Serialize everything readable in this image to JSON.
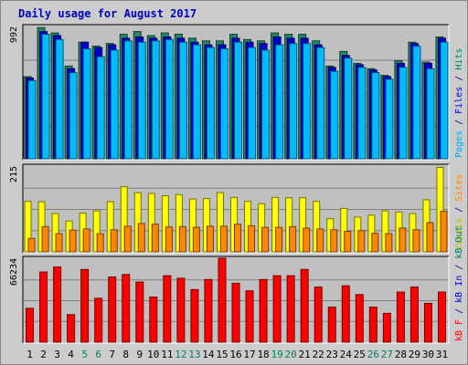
{
  "chart_data": {
    "type": "bar",
    "title": "Daily usage for August 2017",
    "categories": [
      "1",
      "2",
      "3",
      "4",
      "5",
      "6",
      "7",
      "8",
      "9",
      "10",
      "11",
      "12",
      "13",
      "14",
      "15",
      "16",
      "17",
      "18",
      "19",
      "20",
      "21",
      "22",
      "23",
      "24",
      "25",
      "26",
      "27",
      "28",
      "29",
      "30",
      "31"
    ],
    "weekend_days": [
      "5",
      "6",
      "12",
      "13",
      "19",
      "20",
      "26",
      "27"
    ],
    "panels": [
      {
        "id": "requests",
        "max_label": "992",
        "ylim": [
          0,
          992
        ],
        "side_labels": [
          {
            "text": "Pages",
            "color": "#00aaee"
          },
          {
            "text": " / ",
            "color": "#000080"
          },
          {
            "text": "Files",
            "color": "#0000cc"
          },
          {
            "text": " / ",
            "color": "#000080"
          },
          {
            "text": "Hits",
            "color": "#008060"
          }
        ],
        "series": [
          {
            "name": "Hits",
            "color": "#228866",
            "values": [
              620,
              990,
              950,
              700,
              880,
              850,
              870,
              940,
              960,
              930,
              950,
              940,
              910,
              890,
              890,
              940,
              900,
              890,
              950,
              940,
              940,
              890,
              700,
              810,
              720,
              680,
              630,
              740,
              880,
              730,
              920
            ]
          },
          {
            "name": "Files",
            "color": "#0000cc",
            "values": [
              610,
              960,
              930,
              680,
              880,
              840,
              860,
              910,
              920,
              910,
              920,
              910,
              880,
              860,
              860,
              910,
              880,
              870,
              920,
              910,
              910,
              860,
              690,
              780,
              710,
              670,
              620,
              720,
              870,
              720,
              910
            ]
          },
          {
            "name": "Pages",
            "color": "#00bbff",
            "values": [
              590,
              940,
              900,
              650,
              830,
              770,
              820,
              890,
              880,
              890,
              900,
              880,
              860,
              840,
              830,
              880,
              840,
              820,
              860,
              870,
              870,
              840,
              660,
              760,
              690,
              650,
              600,
              690,
              850,
              680,
              880
            ]
          }
        ]
      },
      {
        "id": "visits",
        "max_label": "215",
        "ylim": [
          0,
          215
        ],
        "side_labels": [
          {
            "text": "Visits",
            "color": "#bbbb00"
          },
          {
            "text": " / ",
            "color": "#000080"
          },
          {
            "text": "Sites",
            "color": "#ff8800"
          }
        ],
        "series": [
          {
            "name": "Visits",
            "color": "#ffff00",
            "values": [
              128,
              127,
              97,
              78,
              98,
              104,
              127,
              165,
              150,
              148,
              142,
              145,
              134,
              135,
              150,
              138,
              128,
              122,
              138,
              137,
              137,
              128,
              84,
              110,
              88,
              93,
              104,
              101,
              97,
              132,
              214
            ]
          },
          {
            "name": "Sites",
            "color": "#ff8800",
            "values": [
              34,
              64,
              46,
              55,
              58,
              46,
              56,
              65,
              72,
              70,
              63,
              64,
              62,
              65,
              65,
              70,
              66,
              62,
              62,
              64,
              60,
              58,
              56,
              52,
              54,
              47,
              46,
              60,
              56,
              74,
              103
            ]
          }
        ]
      },
      {
        "id": "kbytes",
        "max_label": "66234",
        "ylim": [
          0,
          66234
        ],
        "side_labels": [
          {
            "text": "kB F",
            "color": "#ff0000"
          },
          {
            "text": " / ",
            "color": "#000080"
          },
          {
            "text": "kB In",
            "color": "#0000cc"
          },
          {
            "text": " / ",
            "color": "#000080"
          },
          {
            "text": "kB Out",
            "color": "#008060"
          }
        ],
        "series": [
          {
            "name": "kB F",
            "color": "#ff0000",
            "values": [
              27000,
              56000,
              60000,
              22000,
              58000,
              35000,
              52000,
              54000,
              48000,
              36000,
              53000,
              51000,
              42000,
              50000,
              67000,
              47000,
              41000,
              50000,
              53000,
              53000,
              58000,
              44000,
              28000,
              45000,
              38000,
              28000,
              23000,
              40000,
              44000,
              31000,
              40000
            ]
          }
        ]
      }
    ]
  }
}
